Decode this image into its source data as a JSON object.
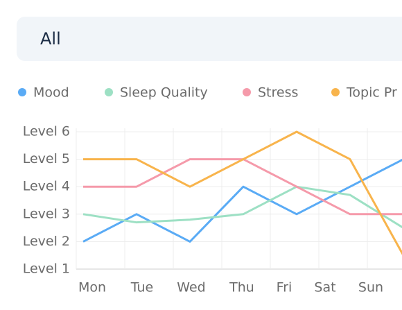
{
  "filter": {
    "label": "All"
  },
  "chart_data": {
    "type": "line",
    "categories": [
      "Mon",
      "Tue",
      "Wed",
      "Thu",
      "Fri",
      "Sat",
      "Sun"
    ],
    "series": [
      {
        "name": "Mood",
        "color": "#5aabf5",
        "values": [
          2,
          3,
          2,
          4,
          3,
          4,
          5
        ]
      },
      {
        "name": "Sleep Quality",
        "color": "#9de0c4",
        "values": [
          3,
          2.7,
          2.8,
          3,
          4,
          3.7,
          2.5
        ]
      },
      {
        "name": "Stress",
        "color": "#f59aaa",
        "values": [
          4,
          4,
          5,
          5,
          4,
          3,
          3
        ]
      },
      {
        "name": "Topic Pr",
        "color": "#f8b44c",
        "values": [
          5,
          5,
          4,
          5,
          6,
          5,
          1.5
        ]
      }
    ],
    "ylim": [
      1,
      6
    ],
    "yticks": [
      {
        "value": 1,
        "label": "Level 1"
      },
      {
        "value": 2,
        "label": "Level 2"
      },
      {
        "value": 3,
        "label": "Level 3"
      },
      {
        "value": 4,
        "label": "Level 4"
      },
      {
        "value": 5,
        "label": "Level 5"
      },
      {
        "value": 6,
        "label": "Level 6"
      }
    ],
    "grid": true,
    "legend": "top"
  }
}
